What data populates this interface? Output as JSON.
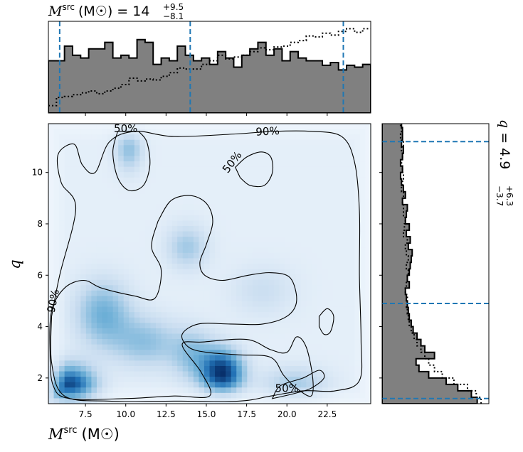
{
  "chart_data": [
    {
      "type": "heatmap",
      "name": "joint-density",
      "xlabel_main": "M",
      "xlabel_sup": "src",
      "xlabel_unit": "(M☉)",
      "ylabel": "q",
      "xlim": [
        5.2,
        25.2
      ],
      "ylim": [
        1.0,
        11.9
      ],
      "xticks": [
        7.5,
        10.0,
        12.5,
        15.0,
        17.5,
        20.0,
        22.5
      ],
      "xtick_labels": [
        "7.5",
        "10.0",
        "12.5",
        "15.0",
        "17.5",
        "20.0",
        "22.5"
      ],
      "yticks": [
        2,
        4,
        6,
        8,
        10
      ],
      "ytick_labels": [
        "2",
        "4",
        "6",
        "8",
        "10"
      ],
      "colormap": [
        "#f7fbff",
        "#c6dbef",
        "#6baed6",
        "#2171b5",
        "#08306b"
      ],
      "density_blobs": [
        {
          "x": 6.5,
          "y": 1.6,
          "sx": 1.1,
          "sy": 0.6,
          "w": 1.0
        },
        {
          "x": 16.0,
          "y": 2.2,
          "sx": 0.9,
          "sy": 0.6,
          "w": 1.0
        },
        {
          "x": 8.6,
          "y": 4.5,
          "sx": 1.2,
          "sy": 0.9,
          "w": 0.45
        },
        {
          "x": 11.2,
          "y": 3.4,
          "sx": 1.4,
          "sy": 0.7,
          "w": 0.35
        },
        {
          "x": 10.2,
          "y": 10.9,
          "sx": 0.6,
          "sy": 0.6,
          "w": 0.35
        },
        {
          "x": 13.8,
          "y": 7.1,
          "sx": 0.9,
          "sy": 0.6,
          "w": 0.3
        },
        {
          "x": 18.5,
          "y": 5.4,
          "sx": 1.4,
          "sy": 0.7,
          "w": 0.15
        },
        {
          "x": 20.5,
          "y": 1.7,
          "sx": 1.4,
          "sy": 0.5,
          "w": 0.3
        },
        {
          "x": 14.2,
          "y": 2.9,
          "sx": 1.0,
          "sy": 0.7,
          "w": 0.35
        }
      ],
      "contours": [
        {
          "level_label": "90%",
          "points": [
            [
              5.4,
              4.4
            ],
            [
              5.9,
              6.0
            ],
            [
              6.9,
              8.6
            ],
            [
              6.0,
              9.6
            ],
            [
              5.8,
              10.7
            ],
            [
              6.8,
              11.1
            ],
            [
              7.3,
              10.3
            ],
            [
              8.1,
              10.0
            ],
            [
              9.0,
              11.2
            ],
            [
              10.6,
              11.6
            ],
            [
              13.0,
              11.4
            ],
            [
              16.8,
              11.5
            ],
            [
              19.2,
              11.6
            ],
            [
              21.5,
              11.6
            ],
            [
              23.4,
              11.4
            ],
            [
              24.2,
              10.4
            ],
            [
              24.5,
              8.5
            ],
            [
              24.5,
              6.0
            ],
            [
              24.6,
              3.5
            ],
            [
              24.5,
              1.9
            ],
            [
              23.0,
              1.5
            ],
            [
              21.0,
              1.5
            ],
            [
              19.0,
              1.3
            ],
            [
              17.0,
              1.1
            ],
            [
              13.0,
              1.1
            ],
            [
              9.0,
              1.1
            ],
            [
              6.2,
              1.3
            ],
            [
              5.4,
              2.6
            ],
            [
              5.4,
              4.4
            ]
          ],
          "label_at": [
            5.5,
            5.0
          ],
          "label_at_2": [
            18.8,
            11.6
          ]
        },
        {
          "level_label": "50%",
          "points": [
            [
              9.5,
              11.6
            ],
            [
              9.2,
              10.8
            ],
            [
              9.5,
              9.8
            ],
            [
              10.2,
              9.3
            ],
            [
              11.1,
              9.5
            ],
            [
              11.5,
              10.3
            ],
            [
              11.3,
              11.2
            ],
            [
              10.8,
              11.6
            ]
          ],
          "label_at": [
            10.0,
            11.7
          ]
        },
        {
          "level_label": "50%",
          "points": [
            [
              16.8,
              10.2
            ],
            [
              17.5,
              10.6
            ],
            [
              18.4,
              10.8
            ],
            [
              19.0,
              10.6
            ],
            [
              19.1,
              10.0
            ],
            [
              18.6,
              9.5
            ],
            [
              17.7,
              9.5
            ],
            [
              17.1,
              9.8
            ]
          ],
          "label_at": [
            16.6,
            10.4
          ]
        },
        {
          "level_label": "",
          "points": [
            [
              12.0,
              8.1
            ],
            [
              12.8,
              8.9
            ],
            [
              14.0,
              9.1
            ],
            [
              15.0,
              8.8
            ],
            [
              15.4,
              8.1
            ],
            [
              15.0,
              7.2
            ],
            [
              14.6,
              6.5
            ],
            [
              14.9,
              6.0
            ],
            [
              16.0,
              5.8
            ],
            [
              17.6,
              6.0
            ],
            [
              19.0,
              6.1
            ],
            [
              20.2,
              5.9
            ],
            [
              20.6,
              5.0
            ],
            [
              20.0,
              4.4
            ],
            [
              18.5,
              4.1
            ],
            [
              16.5,
              4.1
            ],
            [
              14.5,
              4.1
            ],
            [
              13.5,
              3.7
            ],
            [
              13.9,
              3.2
            ],
            [
              15.0,
              3.0
            ],
            [
              17.0,
              2.9
            ],
            [
              19.0,
              2.8
            ],
            [
              19.8,
              2.1
            ],
            [
              20.6,
              1.6
            ],
            [
              21.5,
              1.3
            ],
            [
              21.6,
              2.0
            ],
            [
              21.2,
              3.2
            ],
            [
              20.6,
              3.6
            ],
            [
              20.0,
              3.0
            ],
            [
              19.0,
              3.1
            ],
            [
              17.5,
              3.5
            ],
            [
              14.8,
              3.4
            ],
            [
              13.5,
              3.3
            ],
            [
              14.7,
              2.2
            ],
            [
              15.2,
              1.3
            ],
            [
              13.0,
              1.3
            ],
            [
              10.0,
              1.2
            ],
            [
              6.5,
              1.2
            ],
            [
              5.5,
              1.7
            ],
            [
              5.3,
              3.0
            ],
            [
              5.4,
              4.6
            ],
            [
              6.2,
              5.5
            ],
            [
              7.4,
              5.8
            ],
            [
              8.5,
              5.5
            ],
            [
              10.5,
              5.2
            ],
            [
              11.8,
              5.1
            ],
            [
              12.2,
              6.2
            ],
            [
              11.6,
              7.1
            ],
            [
              12.0,
              8.1
            ]
          ],
          "label_at": null
        },
        {
          "level_label": "50%",
          "points": [
            [
              19.1,
              1.2
            ],
            [
              20.5,
              1.4
            ],
            [
              21.5,
              1.6
            ],
            [
              22.3,
              2.0
            ],
            [
              22.0,
              2.3
            ],
            [
              21.0,
              2.0
            ],
            [
              19.6,
              1.7
            ],
            [
              19.1,
              1.2
            ]
          ],
          "label_at": [
            20.0,
            1.6
          ]
        },
        {
          "level_label": "",
          "points": [
            [
              22.0,
              4.4
            ],
            [
              22.5,
              4.7
            ],
            [
              22.9,
              4.4
            ],
            [
              22.7,
              3.8
            ],
            [
              22.3,
              3.7
            ],
            [
              22.0,
              4.0
            ]
          ],
          "label_at": null
        }
      ]
    },
    {
      "type": "bar",
      "name": "marginal-chirp-mass",
      "title_main": "M",
      "title_sup": "src",
      "title_unit": "(M☉) = 14",
      "title_plus": "+9.5",
      "title_minus": "−8.1",
      "xlim": [
        5.2,
        25.2
      ],
      "bins_start": 5.2,
      "bin_width": 0.5,
      "posterior": [
        0.57,
        0.57,
        0.73,
        0.63,
        0.6,
        0.7,
        0.7,
        0.77,
        0.6,
        0.63,
        0.6,
        0.8,
        0.77,
        0.53,
        0.6,
        0.57,
        0.73,
        0.63,
        0.57,
        0.6,
        0.53,
        0.67,
        0.6,
        0.5,
        0.63,
        0.7,
        0.77,
        0.63,
        0.7,
        0.57,
        0.67,
        0.6,
        0.57,
        0.57,
        0.52,
        0.55,
        0.47,
        0.52,
        0.5,
        0.53
      ],
      "prior": [
        0.08,
        0.17,
        0.18,
        0.2,
        0.22,
        0.24,
        0.21,
        0.24,
        0.27,
        0.31,
        0.38,
        0.35,
        0.37,
        0.36,
        0.4,
        0.44,
        0.49,
        0.48,
        0.48,
        0.53,
        0.57,
        0.63,
        0.59,
        0.61,
        0.63,
        0.67,
        0.71,
        0.69,
        0.72,
        0.73,
        0.77,
        0.79,
        0.84,
        0.83,
        0.87,
        0.85,
        0.89,
        0.92,
        0.88,
        0.92
      ],
      "ylim": [
        0,
        1.0
      ],
      "quantiles": [
        5.9,
        14.0,
        23.5
      ]
    },
    {
      "type": "bar",
      "name": "marginal-mass-ratio",
      "orientation": "horizontal",
      "title_main": "q = 4.9",
      "title_plus": "+6.3",
      "title_minus": "−3.7",
      "ylim": [
        1.0,
        11.9
      ],
      "bins_start": 1.0,
      "bin_width": 0.25,
      "posterior": [
        0.98,
        0.92,
        0.78,
        0.66,
        0.48,
        0.38,
        0.35,
        0.54,
        0.44,
        0.4,
        0.36,
        0.32,
        0.3,
        0.28,
        0.27,
        0.26,
        0.25,
        0.24,
        0.28,
        0.26,
        0.28,
        0.29,
        0.3,
        0.31,
        0.27,
        0.29,
        0.25,
        0.28,
        0.24,
        0.25,
        0.26,
        0.21,
        0.24,
        0.22,
        0.2,
        0.19,
        0.21,
        0.19,
        0.21,
        0.22,
        0.2,
        0.21,
        0.21,
        0.2,
        0.22,
        0.2,
        0.21,
        0.19
      ],
      "prior": [
        1.02,
        0.97,
        0.88,
        0.74,
        0.62,
        0.54,
        0.48,
        0.44,
        0.4,
        0.36,
        0.33,
        0.3,
        0.28,
        0.27,
        0.26,
        0.25,
        0.26,
        0.24,
        0.25,
        0.26,
        0.27,
        0.25,
        0.27,
        0.25,
        0.24,
        0.26,
        0.22,
        0.23,
        0.24,
        0.22,
        0.22,
        0.21,
        0.22,
        0.2,
        0.21,
        0.22,
        0.21,
        0.2,
        0.21,
        0.2,
        0.22,
        0.19,
        0.2,
        0.19,
        0.18,
        0.19,
        0.19,
        0.18
      ],
      "xlim": [
        0,
        1.1
      ],
      "quantiles": [
        1.2,
        4.9,
        11.2
      ]
    }
  ],
  "colors": {
    "posterior_fill": "#808080",
    "posterior_edge": "#000000",
    "prior_line": "#000000",
    "quantile_line": "#1f77b4",
    "contour": "#000000"
  }
}
